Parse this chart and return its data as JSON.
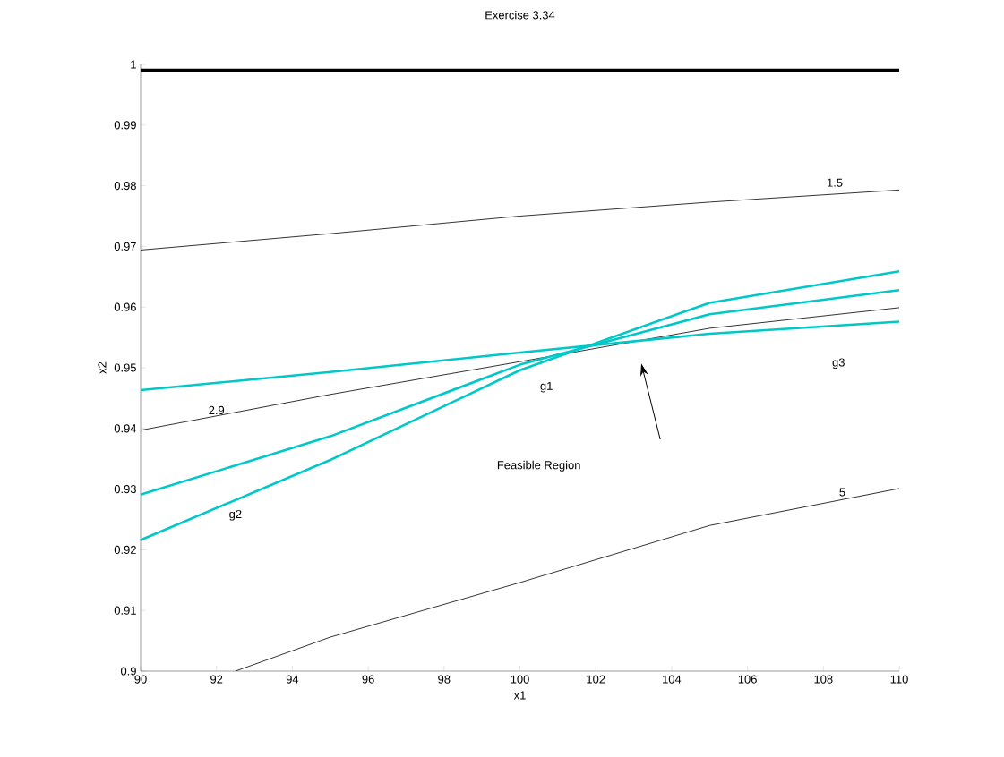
{
  "chart_data": {
    "type": "line",
    "title": "Exercise 3.34",
    "xlabel": "x1",
    "ylabel": "x2",
    "xlim": [
      90,
      110
    ],
    "ylim": [
      0.9,
      1
    ],
    "xticks": [
      90,
      92,
      94,
      96,
      98,
      100,
      102,
      104,
      106,
      108,
      110
    ],
    "yticks": [
      0.9,
      0.91,
      0.92,
      0.93,
      0.94,
      0.95,
      0.96,
      0.97,
      0.98,
      0.99,
      1
    ],
    "grid": false,
    "marker": "none",
    "line_style": "solid",
    "series": [
      {
        "color": "#000000",
        "x": [
          90,
          110
        ],
        "values": [
          0.999,
          0.999
        ]
      },
      {
        "color": "#000000",
        "x": [
          90,
          95,
          100,
          105,
          110
        ],
        "values": [
          0.9694,
          0.9721,
          0.975,
          0.9773,
          0.9793
        ]
      },
      {
        "color": "#000000",
        "x": [
          90,
          95,
          100,
          105,
          110
        ],
        "values": [
          0.9397,
          0.9456,
          0.951,
          0.9565,
          0.9599
        ]
      },
      {
        "color": "#000000",
        "x": [
          92.5,
          95,
          100,
          105,
          110
        ],
        "values": [
          0.9,
          0.9056,
          0.9146,
          0.924,
          0.9301
        ]
      },
      {
        "color": "#00c8c8",
        "x": [
          90,
          95,
          100,
          105,
          110
        ],
        "values": [
          0.9463,
          0.9493,
          0.9525,
          0.9556,
          0.9576
        ]
      },
      {
        "color": "#00c8c8",
        "x": [
          90,
          95,
          100,
          105,
          110
        ],
        "values": [
          0.9291,
          0.9387,
          0.9505,
          0.9588,
          0.9628
        ]
      },
      {
        "color": "#00c8c8",
        "x": [
          90,
          95,
          100,
          105,
          110
        ],
        "values": [
          0.9216,
          0.9348,
          0.9496,
          0.9607,
          0.9659
        ]
      }
    ],
    "annotations": [
      "1.5",
      "2.9",
      "5",
      "g1",
      "g2",
      "g3",
      "Feasible Region"
    ]
  }
}
